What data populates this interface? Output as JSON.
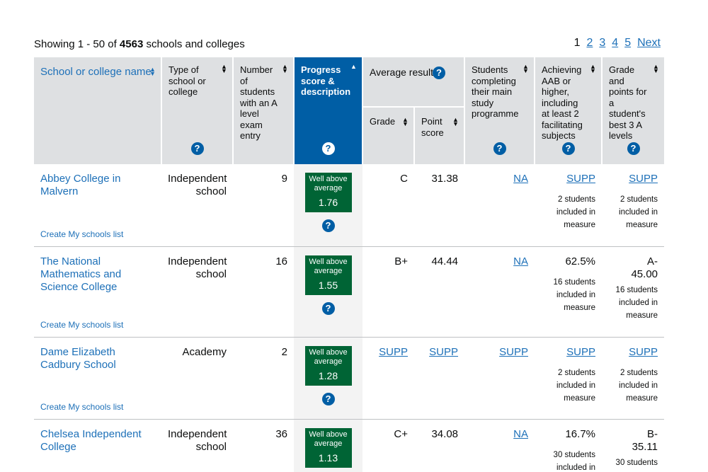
{
  "summary": {
    "prefix": "Showing 1 - 50 of ",
    "total": "4563",
    "suffix": " schools and colleges"
  },
  "pagination": {
    "current": "1",
    "pages": [
      "2",
      "3",
      "4",
      "5"
    ],
    "next_label": "Next"
  },
  "columns": {
    "name": "School or college name",
    "type": "Type of school or college",
    "number": "Number of students with an A level exam entry",
    "progress": "Progress score & description",
    "avg": "Average result",
    "grade": "Grade",
    "point": "Point score",
    "study": "Students completing their main study programme",
    "aab": "Achieving AAB or higher, including at least 2 facilitating subjects",
    "best": "Grade and points for a student's best 3 A levels"
  },
  "help_icon": "?",
  "create_list_label": "Create My schools list",
  "rows": [
    {
      "name": "Abbey College in Malvern",
      "type": "Independent school",
      "number": "9",
      "progress_label": "Well above average",
      "progress_value": "1.76",
      "grade": "C",
      "point": "31.38",
      "study": "NA",
      "aab_value": "SUPP",
      "aab_note_1": "2 students",
      "aab_note_2": "included in",
      "aab_note_3": "measure",
      "best_value_1": "SUPP",
      "best_value_2": "",
      "best_note_1": "2 students",
      "best_note_2": "included in",
      "best_note_3": "measure"
    },
    {
      "name": "The National Mathematics and Science College",
      "type": "Independent school",
      "number": "16",
      "progress_label": "Well above average",
      "progress_value": "1.55",
      "grade": "B+",
      "point": "44.44",
      "study": "NA",
      "aab_value": "62.5%",
      "aab_note_1": "16 students",
      "aab_note_2": "included in",
      "aab_note_3": "measure",
      "best_value_1": "A-",
      "best_value_2": "45.00",
      "best_note_1": "16 students",
      "best_note_2": "included in",
      "best_note_3": "measure"
    },
    {
      "name": "Dame Elizabeth Cadbury School",
      "type": "Academy",
      "number": "2",
      "progress_label": "Well above average",
      "progress_value": "1.28",
      "grade": "SUPP",
      "point": "SUPP",
      "study": "SUPP",
      "aab_value": "SUPP",
      "aab_note_1": "2 students",
      "aab_note_2": "included in",
      "aab_note_3": "measure",
      "best_value_1": "SUPP",
      "best_value_2": "",
      "best_note_1": "2 students",
      "best_note_2": "included in",
      "best_note_3": "measure"
    },
    {
      "name": "Chelsea Independent College",
      "type": "Independent school",
      "number": "36",
      "progress_label": "Well above average",
      "progress_value": "1.13",
      "grade": "C+",
      "point": "34.08",
      "study": "NA",
      "aab_value": "16.7%",
      "aab_note_1": "30 students",
      "aab_note_2": "included in",
      "aab_note_3": "",
      "best_value_1": "B-",
      "best_value_2": "35.11",
      "best_note_1": "30 students",
      "best_note_2": "",
      "best_note_3": ""
    }
  ],
  "colors": {
    "link": "#1d70b8",
    "header_bg": "#dee0e2",
    "progress_header_bg": "#005ea5",
    "badge_green": "#006435"
  }
}
